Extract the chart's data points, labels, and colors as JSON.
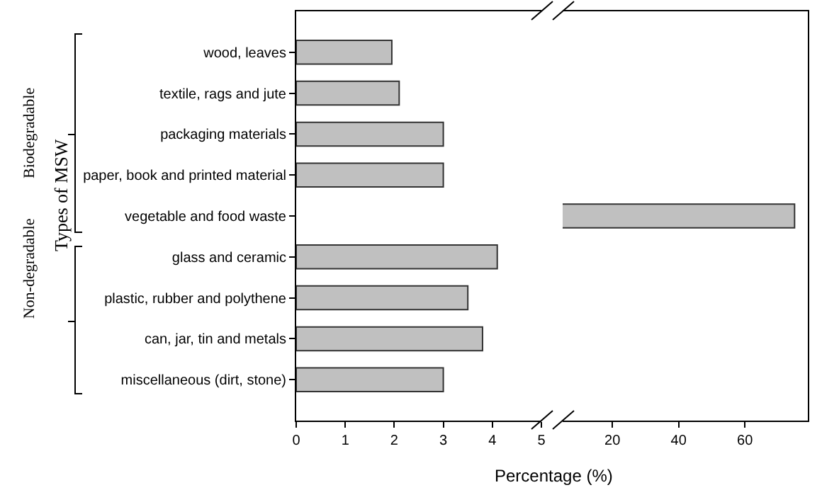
{
  "chart_data": [
    {
      "type": "bar",
      "orientation": "horizontal",
      "ylabel": "Types of MSW",
      "categories": [
        "wood, leaves",
        "textile, rags and jute",
        "packaging materials",
        "paper, book and printed material",
        "vegetable and food waste",
        "glass and ceramic",
        "plastic, rubber and polythene",
        "can, jar, tin and metals",
        "miscellaneous (dirt, stone)"
      ],
      "values": [
        1.95,
        2.1,
        3.0,
        3.0,
        null,
        4.1,
        3.5,
        3.8,
        3.0
      ],
      "color": "#c0c0c0",
      "xlim": [
        0,
        5
      ],
      "xticks": [
        0,
        1,
        2,
        3,
        4,
        5
      ],
      "grid": false,
      "annotations": [
        "Biodegradable",
        "Non-degradable"
      ]
    },
    {
      "type": "bar",
      "orientation": "horizontal",
      "xlabel": "Percentage (%)",
      "categories": [
        null,
        null,
        null,
        null,
        null,
        null,
        null,
        null,
        null
      ],
      "values": [
        null,
        null,
        null,
        null,
        75,
        null,
        null,
        null,
        null
      ],
      "color": "#c0c0c0",
      "xlim": [
        5,
        79
      ],
      "xticks": [
        20,
        40,
        60
      ],
      "grid": false,
      "tick_labels": "x"
    }
  ]
}
